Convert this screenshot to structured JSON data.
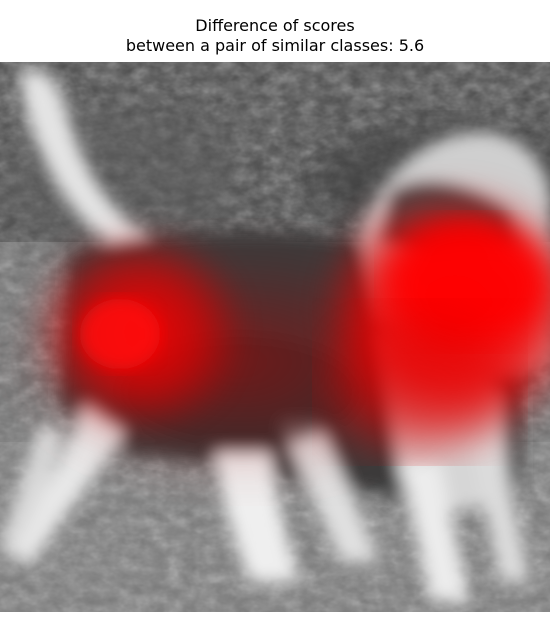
{
  "figure": {
    "title_line1": "Difference of scores",
    "title_line2": "between a pair of similar classes: 5.6"
  },
  "overlay": {
    "base": "grayscale",
    "heatmap_color": "#ff0000"
  }
}
